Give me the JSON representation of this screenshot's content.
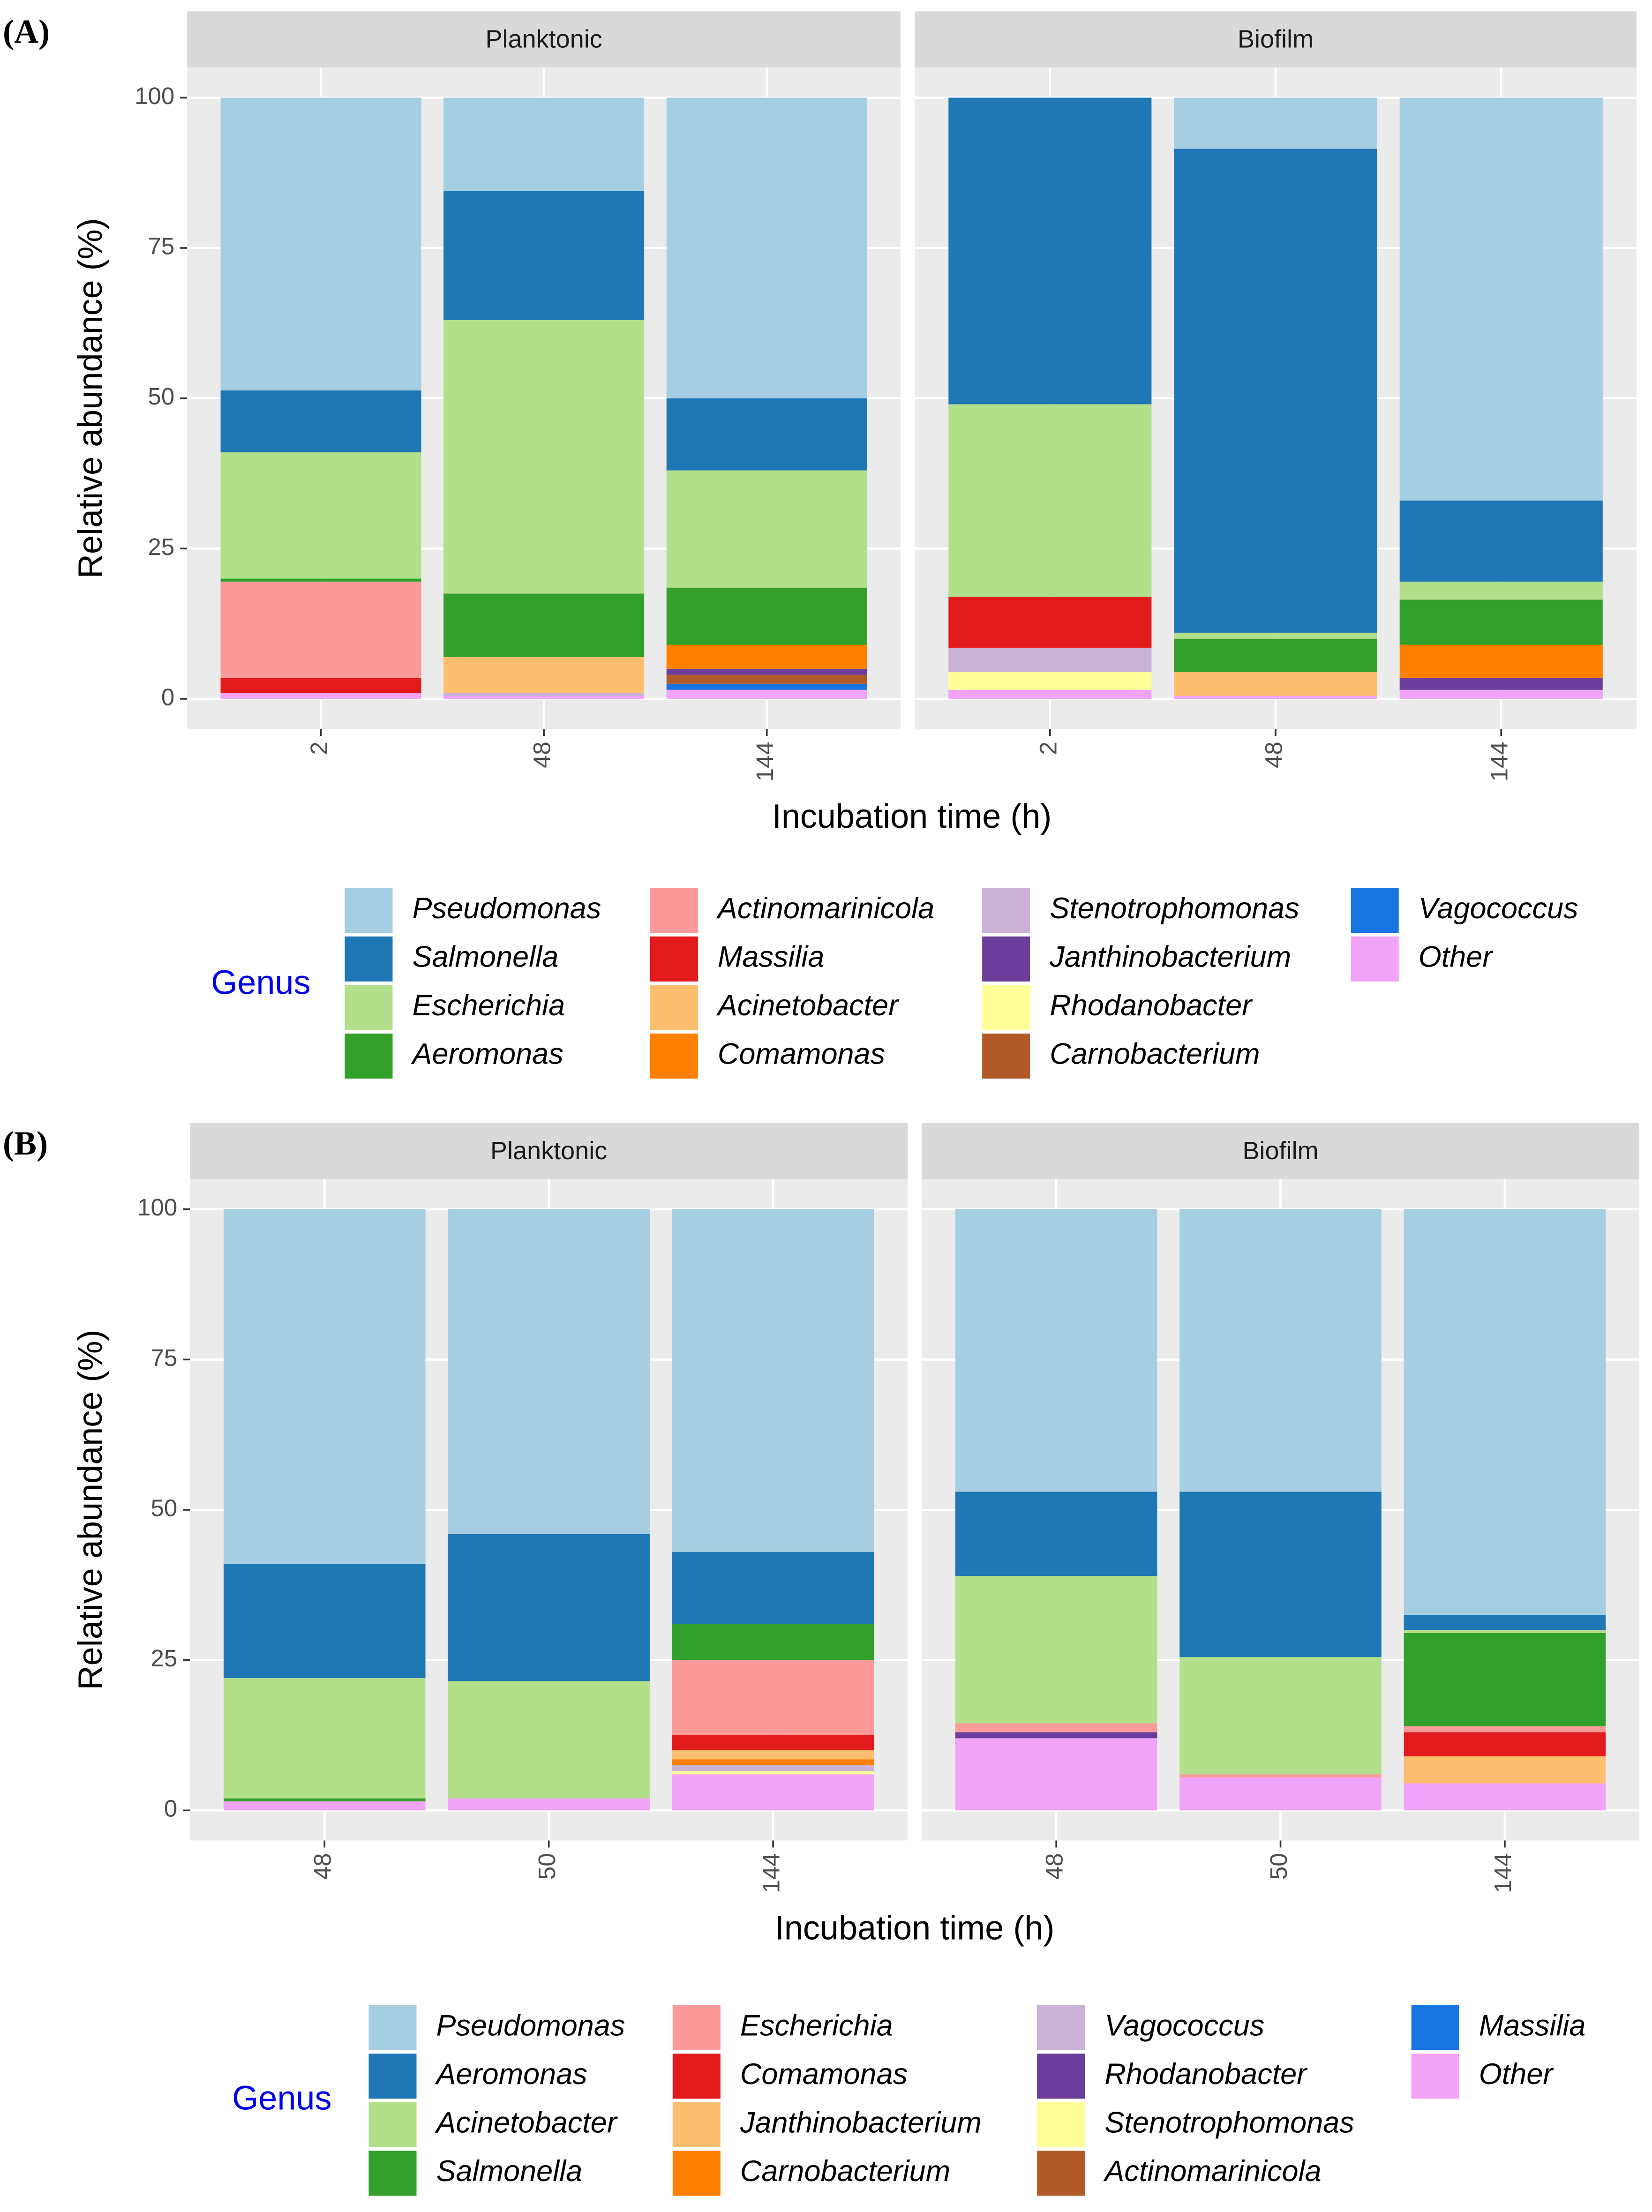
{
  "chart_data": [
    {
      "panel_label": "(A)",
      "type": "bar",
      "stacked": true,
      "facets": [
        "Planktonic",
        "Biofilm"
      ],
      "categories": [
        "2",
        "48",
        "144"
      ],
      "xlabel": "Incubation time (h)",
      "ylabel": "Relative abundance (%)",
      "legend_title": "Genus",
      "ylim": [
        -5,
        105
      ],
      "yticks": [
        0,
        25,
        50,
        75,
        100
      ],
      "grid": true,
      "series": [
        {
          "name": "Pseudomonas",
          "color": "#a6cee3",
          "values": [
            [
              48.7,
              15.5,
              50
            ],
            [
              0,
              8.5,
              67
            ]
          ]
        },
        {
          "name": "Salmonella",
          "color": "#1f78b4",
          "values": [
            [
              10.3,
              21.5,
              12
            ],
            [
              51,
              80.5,
              13.5
            ]
          ]
        },
        {
          "name": "Escherichia",
          "color": "#b2df8a",
          "values": [
            [
              21,
              45.5,
              19.5
            ],
            [
              32,
              1,
              3
            ]
          ]
        },
        {
          "name": "Aeromonas",
          "color": "#33a02c",
          "values": [
            [
              0.5,
              10.5,
              9.5
            ],
            [
              0,
              5.5,
              7.5
            ]
          ]
        },
        {
          "name": "Actinomarinicola",
          "color": "#fb9a99",
          "values": [
            [
              16,
              0,
              0
            ],
            [
              0,
              0,
              0
            ]
          ]
        },
        {
          "name": "Massilia",
          "color": "#e31a1c",
          "values": [
            [
              2.5,
              0,
              0
            ],
            [
              8.5,
              0,
              0
            ]
          ]
        },
        {
          "name": "Acinetobacter",
          "color": "#fdbf6f",
          "values": [
            [
              0,
              6,
              0
            ],
            [
              0,
              4,
              0
            ]
          ]
        },
        {
          "name": "Comamonas",
          "color": "#ff7f00",
          "values": [
            [
              0,
              0,
              4
            ],
            [
              0,
              0,
              5.5
            ]
          ]
        },
        {
          "name": "Stenotrophomonas",
          "color": "#cab2d6",
          "values": [
            [
              0,
              0.5,
              0
            ],
            [
              4,
              0,
              0
            ]
          ]
        },
        {
          "name": "Janthinobacterium",
          "color": "#6a3d9a",
          "values": [
            [
              0,
              0,
              1
            ],
            [
              0,
              0,
              2
            ]
          ]
        },
        {
          "name": "Rhodanobacter",
          "color": "#ffff99",
          "values": [
            [
              0,
              0,
              0
            ],
            [
              3,
              0,
              0
            ]
          ]
        },
        {
          "name": "Carnobacterium",
          "color": "#b15928",
          "values": [
            [
              0,
              0,
              1.5
            ],
            [
              0,
              0,
              0
            ]
          ]
        },
        {
          "name": "Vagococcus",
          "color": "#1874e0",
          "values": [
            [
              0,
              0,
              1
            ],
            [
              0,
              0,
              0
            ]
          ]
        },
        {
          "name": "Other",
          "color": "#f0a3f7",
          "values": [
            [
              1,
              0.5,
              1.5
            ],
            [
              1.5,
              0.5,
              1.5
            ]
          ]
        }
      ]
    },
    {
      "panel_label": "(B)",
      "type": "bar",
      "stacked": true,
      "facets": [
        "Planktonic",
        "Biofilm"
      ],
      "categories": [
        "48",
        "50",
        "144"
      ],
      "xlabel": "Incubation time (h)",
      "ylabel": "Relative abundance (%)",
      "legend_title": "Genus",
      "ylim": [
        -5,
        105
      ],
      "yticks": [
        0,
        25,
        50,
        75,
        100
      ],
      "grid": true,
      "series": [
        {
          "name": "Pseudomonas",
          "color": "#a6cee3",
          "values": [
            [
              59,
              54,
              57
            ],
            [
              47,
              47,
              67.5
            ]
          ]
        },
        {
          "name": "Aeromonas",
          "color": "#1f78b4",
          "values": [
            [
              19,
              24.5,
              12
            ],
            [
              14,
              27.5,
              2.5
            ]
          ]
        },
        {
          "name": "Acinetobacter",
          "color": "#b2df8a",
          "values": [
            [
              20,
              19.5,
              0
            ],
            [
              24.5,
              19.5,
              0.5
            ]
          ]
        },
        {
          "name": "Salmonella",
          "color": "#33a02c",
          "values": [
            [
              0.5,
              0,
              6
            ],
            [
              0,
              0,
              15.5
            ]
          ]
        },
        {
          "name": "Escherichia",
          "color": "#fb9a99",
          "values": [
            [
              0,
              0,
              12.5
            ],
            [
              1.5,
              0.5,
              1
            ]
          ]
        },
        {
          "name": "Comamonas",
          "color": "#e31a1c",
          "values": [
            [
              0,
              0,
              2.5
            ],
            [
              0,
              0,
              4
            ]
          ]
        },
        {
          "name": "Janthinobacterium",
          "color": "#fdbf6f",
          "values": [
            [
              0,
              0,
              1.5
            ],
            [
              0,
              0,
              4.5
            ]
          ]
        },
        {
          "name": "Carnobacterium",
          "color": "#ff7f00",
          "values": [
            [
              0,
              0,
              1
            ],
            [
              0,
              0,
              0
            ]
          ]
        },
        {
          "name": "Vagococcus",
          "color": "#cab2d6",
          "values": [
            [
              0,
              0,
              1
            ],
            [
              0,
              0,
              0
            ]
          ]
        },
        {
          "name": "Rhodanobacter",
          "color": "#6a3d9a",
          "values": [
            [
              0,
              0,
              0
            ],
            [
              1,
              0,
              0
            ]
          ]
        },
        {
          "name": "Stenotrophomonas",
          "color": "#ffff99",
          "values": [
            [
              0,
              0,
              0.5
            ],
            [
              0,
              0,
              0
            ]
          ]
        },
        {
          "name": "Actinomarinicola",
          "color": "#b15928",
          "values": [
            [
              0,
              0,
              0
            ],
            [
              0,
              0,
              0
            ]
          ]
        },
        {
          "name": "Massilia",
          "color": "#1874e0",
          "values": [
            [
              0,
              0,
              0
            ],
            [
              0,
              0,
              0
            ]
          ]
        },
        {
          "name": "Other",
          "color": "#f0a3f7",
          "values": [
            [
              1.5,
              2,
              6
            ],
            [
              12,
              5.5,
              4.5
            ]
          ]
        }
      ]
    }
  ]
}
